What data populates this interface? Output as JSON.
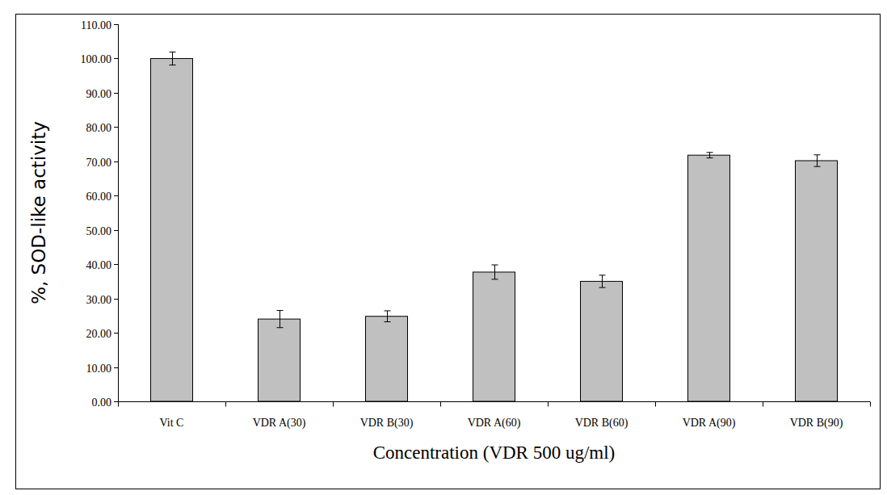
{
  "chart_data": {
    "type": "bar",
    "x_label": "Concentration (VDR 500 ug/ml)",
    "y_label": "%, SOD-like activity",
    "categories": [
      "Vit C",
      "VDR A(30)",
      "VDR B(30)",
      "VDR A(60)",
      "VDR B(60)",
      "VDR A(90)",
      "VDR B(90)"
    ],
    "values": [
      100,
      24,
      24.8,
      37.7,
      35,
      71.8,
      70.2
    ],
    "errors": [
      1.9,
      2.5,
      1.6,
      2.1,
      1.8,
      0.8,
      1.7
    ],
    "color": "#c0c0c0",
    "ylim": [
      0,
      110
    ],
    "yticks": [
      {
        "value": 0,
        "label": "0.00"
      },
      {
        "value": 10,
        "label": "10.00"
      },
      {
        "value": 20,
        "label": "20.00"
      },
      {
        "value": 30,
        "label": "30.00"
      },
      {
        "value": 40,
        "label": "40.00"
      },
      {
        "value": 50,
        "label": "50.00"
      },
      {
        "value": 60,
        "label": "60.00"
      },
      {
        "value": 70,
        "label": "70.00"
      },
      {
        "value": 80,
        "label": "80.00"
      },
      {
        "value": 90,
        "label": "90.00"
      },
      {
        "value": 100,
        "label": "100.00"
      },
      {
        "value": 110,
        "label": "110.00"
      }
    ],
    "grid": false
  }
}
